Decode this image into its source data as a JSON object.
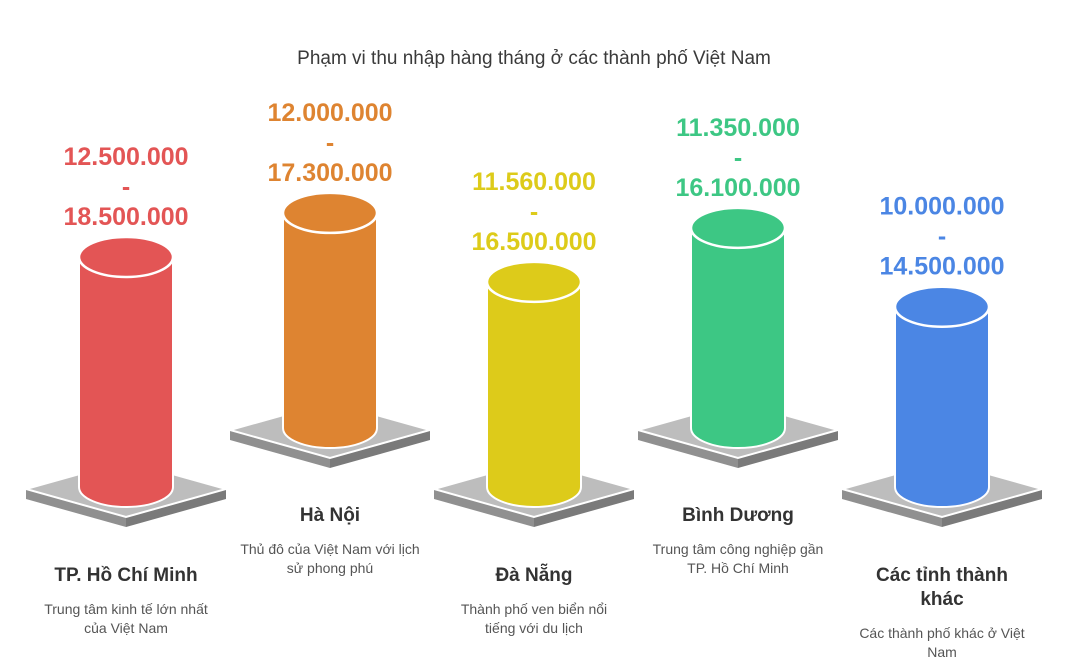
{
  "chart_data": {
    "type": "bar",
    "title": "Phạm vi thu nhập hàng tháng ở các thành phố Việt Nam",
    "categories": [
      "TP. Hồ Chí Minh",
      "Hà Nội",
      "Đà Nẵng",
      "Bình Dương",
      "Các tỉnh thành khác"
    ],
    "descriptions": [
      "Trung tâm kinh tế lớn nhất của Việt Nam",
      "Thủ đô của Việt Nam với lịch sử phong phú",
      "Thành phố ven biển nổi tiếng với du lịch",
      "Trung tâm công nghiệp gần TP. Hồ Chí Minh",
      "Các thành phố khác ở Việt Nam"
    ],
    "series": [
      {
        "name": "min",
        "values": [
          12500000,
          12000000,
          11560000,
          11350000,
          10000000
        ]
      },
      {
        "name": "max",
        "values": [
          18500000,
          17300000,
          16500000,
          16100000,
          14500000
        ]
      }
    ],
    "range_labels": [
      [
        "12.500.000",
        "-",
        "18.500.000"
      ],
      [
        "12.000.000",
        "-",
        "17.300.000"
      ],
      [
        "11.560.000",
        "-",
        "16.500.000"
      ],
      [
        "11.350.000",
        "-",
        "16.100.000"
      ],
      [
        "10.000.000",
        "-",
        "14.500.000"
      ]
    ],
    "colors": [
      "#e35555",
      "#de8431",
      "#ddcb1a",
      "#3dc784",
      "#4b86e4"
    ],
    "xlabel": "",
    "ylabel": ""
  }
}
